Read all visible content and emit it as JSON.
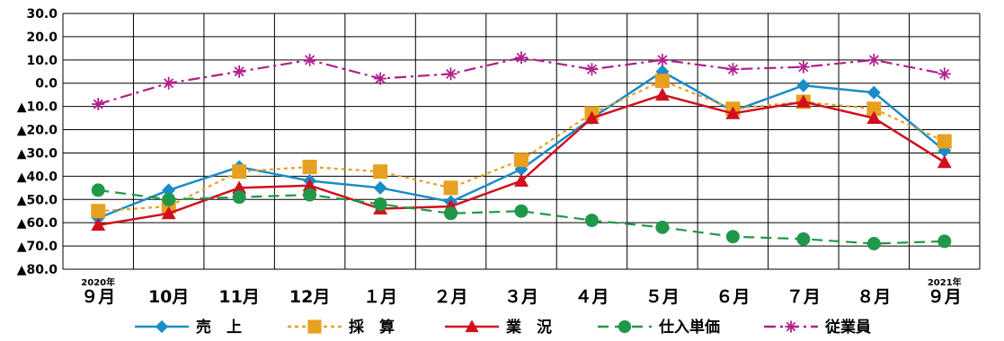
{
  "chart_data": {
    "type": "line",
    "categories": [
      "９月",
      "10月",
      "11月",
      "12月",
      "１月",
      "２月",
      "３月",
      "４月",
      "５月",
      "６月",
      "７月",
      "８月",
      "９月"
    ],
    "year_labels": [
      {
        "index": 0,
        "text": "2020年"
      },
      {
        "index": 12,
        "text": "2021年"
      }
    ],
    "y_tick_labels": [
      "30.0",
      "20.0",
      "10.0",
      "0.0",
      "▲10.0",
      "▲20.0",
      "▲30.0",
      "▲40.0",
      "▲50.0",
      "▲60.0",
      "▲70.0",
      "▲80.0"
    ],
    "y_tick_values": [
      30,
      20,
      10,
      0,
      -10,
      -20,
      -30,
      -40,
      -50,
      -60,
      -70,
      -80
    ],
    "ylim": [
      -80,
      30
    ],
    "grid": true,
    "legend_position": "bottom",
    "series": [
      {
        "name": "売　上",
        "color": "#1a8cc8",
        "marker": "diamond",
        "line_style": "solid",
        "values": [
          -58,
          -46,
          -36,
          -42,
          -45,
          -51,
          -37,
          -15,
          5,
          -12,
          -1,
          -4,
          -29
        ]
      },
      {
        "name": "採　算",
        "color": "#e8a020",
        "marker": "square",
        "line_style": "dotted",
        "values": [
          -55,
          -53,
          -38,
          -36,
          -38,
          -45,
          -33,
          -13,
          1,
          -11,
          -8,
          -11,
          -25
        ]
      },
      {
        "name": "業　況",
        "color": "#d0101e",
        "marker": "triangle",
        "line_style": "solid",
        "values": [
          -61,
          -56,
          -45,
          -44,
          -54,
          -53,
          -42,
          -15,
          -5,
          -13,
          -8,
          -15,
          -34
        ]
      },
      {
        "name": "仕入単価",
        "color": "#20984a",
        "marker": "circle",
        "line_style": "dashed",
        "values": [
          -46,
          -50,
          -49,
          -48,
          -52,
          -56,
          -55,
          -59,
          -62,
          -66,
          -67,
          -69,
          -68
        ]
      },
      {
        "name": "従業員",
        "color": "#b0208c",
        "marker": "star",
        "line_style": "dashdot",
        "values": [
          -9,
          0,
          5,
          10,
          2,
          4,
          11,
          6,
          10,
          6,
          7,
          10,
          4
        ]
      }
    ]
  }
}
